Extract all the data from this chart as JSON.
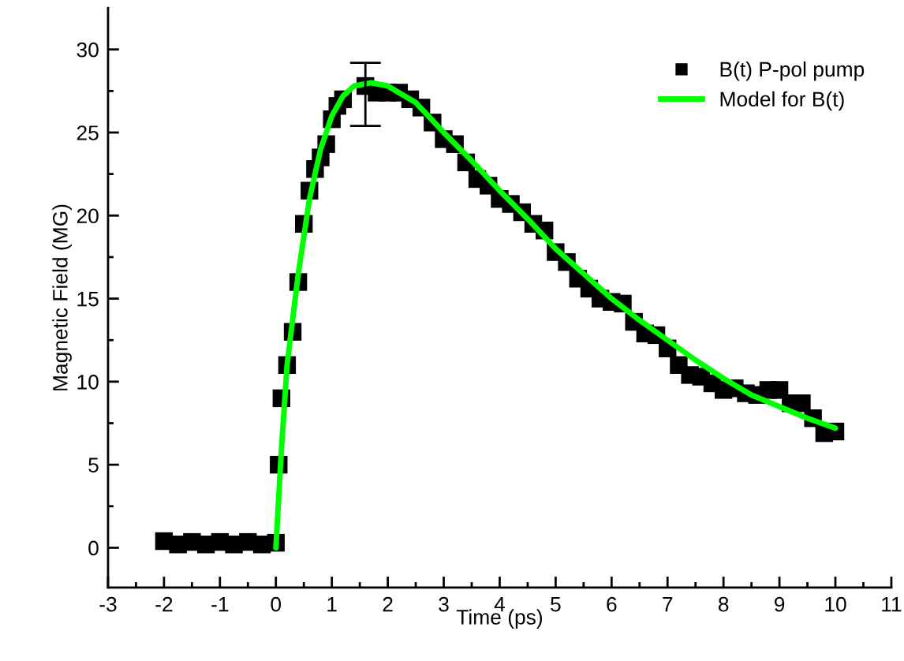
{
  "chart_data": {
    "type": "scatter",
    "xlabel": "Time (ps)",
    "ylabel": "Magnetic Field (MG)",
    "xlim": [
      -3,
      11
    ],
    "ylim": [
      -2.4,
      32.5
    ],
    "xticks": [
      -3,
      {
        "value": -2.5,
        "label": null
      },
      -2,
      {
        "value": -1.5,
        "label": null
      },
      -1,
      {
        "value": -0.5,
        "label": null
      },
      0,
      {
        "value": 0.5,
        "label": null
      },
      1,
      {
        "value": 1.5,
        "label": null
      },
      2,
      {
        "value": 2.5,
        "label": null
      },
      3,
      {
        "value": 3.5,
        "label": null
      },
      4,
      {
        "value": 4.5,
        "label": null
      },
      5,
      {
        "value": 5.5,
        "label": null
      },
      6,
      {
        "value": 6.5,
        "label": null
      },
      7,
      {
        "value": 7.5,
        "label": null
      },
      8,
      {
        "value": 8.5,
        "label": null
      },
      9,
      {
        "value": 9.5,
        "label": null
      },
      10,
      {
        "value": 10.5,
        "label": null
      },
      11
    ],
    "yticks": [
      0,
      {
        "value": 2.5,
        "label": null
      },
      5,
      {
        "value": 7.5,
        "label": null
      },
      10,
      {
        "value": 12.5,
        "label": null
      },
      15,
      {
        "value": 17.5,
        "label": null
      },
      20,
      {
        "value": 22.5,
        "label": null
      },
      25,
      {
        "value": 27.5,
        "label": null
      },
      30
    ],
    "grid": false,
    "legend": "top right",
    "series": [
      {
        "name": "B(t) P-pol pump",
        "marker": "square",
        "color": "#000000",
        "x": [
          -2,
          -1.75,
          -1.5,
          -1.25,
          -1,
          -0.75,
          -0.5,
          -0.25,
          0,
          0.05,
          0.1,
          0.2,
          0.3,
          0.4,
          0.5,
          0.6,
          0.7,
          0.8,
          0.9,
          1.0,
          1.1,
          1.2,
          1.6,
          1.8,
          2.0,
          2.2,
          2.4,
          2.6,
          2.8,
          3.0,
          3.2,
          3.4,
          3.6,
          3.8,
          4.0,
          4.2,
          4.4,
          4.6,
          4.8,
          5.0,
          5.2,
          5.4,
          5.6,
          5.8,
          6.0,
          6.2,
          6.4,
          6.6,
          6.8,
          7.0,
          7.2,
          7.4,
          7.6,
          7.8,
          8.0,
          8.2,
          8.4,
          8.6,
          8.8,
          9.0,
          9.2,
          9.4,
          9.6,
          9.8,
          10.0
        ],
        "values": [
          0.4,
          0.2,
          0.35,
          0.2,
          0.35,
          0.2,
          0.35,
          0.2,
          0.3,
          5,
          9,
          11,
          13,
          16,
          19.5,
          21.5,
          22.8,
          23.5,
          24.3,
          25.8,
          26.6,
          27.0,
          27.8,
          27.4,
          27.4,
          27.4,
          27.0,
          26.5,
          25.6,
          24.6,
          24.3,
          23.2,
          22.2,
          21.8,
          21.0,
          20.7,
          20.2,
          19.5,
          19.1,
          17.8,
          17.2,
          16.2,
          15.6,
          15.0,
          14.8,
          14.7,
          13.6,
          12.9,
          12.8,
          12.0,
          11.0,
          10.4,
          10.3,
          9.9,
          9.5,
          9.6,
          9.3,
          9.2,
          9.5,
          9.5,
          8.7,
          8.7,
          7.8,
          6.9,
          7.0
        ],
        "errors": [
          null,
          null,
          null,
          null,
          null,
          null,
          null,
          null,
          null,
          null,
          null,
          null,
          null,
          null,
          null,
          null,
          null,
          null,
          null,
          null,
          null,
          null,
          [
            25.4,
            29.2
          ],
          null,
          null,
          null,
          null,
          null,
          null,
          null,
          null,
          null,
          null,
          null,
          null,
          null,
          null,
          null,
          null,
          null,
          null,
          null,
          null,
          null,
          null,
          null,
          null,
          null,
          null,
          null,
          null,
          null,
          null,
          null,
          null,
          null,
          null,
          null,
          null,
          null,
          null,
          null,
          null,
          null,
          null
        ]
      },
      {
        "name": "Model for B(t)",
        "type": "line",
        "marker": "none",
        "line_style": "solid",
        "color": "#00ff00",
        "x": [
          0,
          0.1,
          0.2,
          0.4,
          0.6,
          0.8,
          1.0,
          1.2,
          1.4,
          1.7,
          2.0,
          2.5,
          3.0,
          3.5,
          4.0,
          4.5,
          5.0,
          5.5,
          6.0,
          6.5,
          7.0,
          7.5,
          8.0,
          8.5,
          9.0,
          9.5,
          10.0
        ],
        "values": [
          0,
          6,
          11,
          16.5,
          21,
          24,
          26,
          27.2,
          27.8,
          28.0,
          27.8,
          26.8,
          25.0,
          23.3,
          21.5,
          19.8,
          18.0,
          16.5,
          15.0,
          13.7,
          12.5,
          11.3,
          10.2,
          9.2,
          8.5,
          7.8,
          7.2
        ]
      }
    ]
  }
}
